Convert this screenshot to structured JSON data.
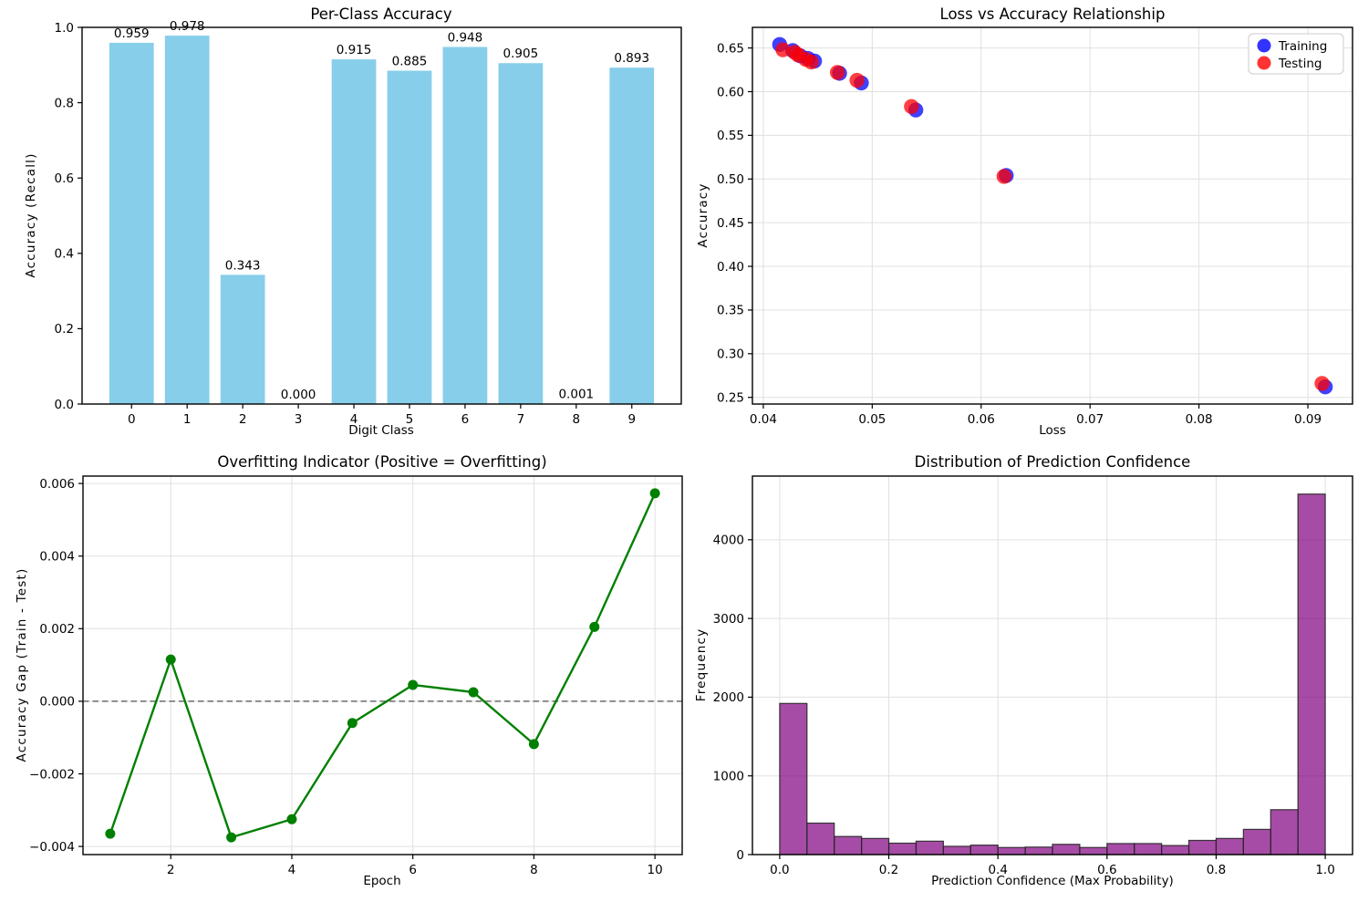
{
  "figure": {
    "background": "#ffffff"
  },
  "chart_data": [
    {
      "type": "bar",
      "title": "Per-Class Accuracy",
      "xlabel": "Digit Class",
      "ylabel": "Accuracy (Recall)",
      "categories": [
        "0",
        "1",
        "2",
        "3",
        "4",
        "5",
        "6",
        "7",
        "8",
        "9"
      ],
      "values": [
        0.959,
        0.978,
        0.343,
        0.0,
        0.915,
        0.885,
        0.948,
        0.905,
        0.001,
        0.893
      ],
      "value_labels": [
        "0.959",
        "0.978",
        "0.343",
        "0.000",
        "0.915",
        "0.885",
        "0.948",
        "0.905",
        "0.001",
        "0.893"
      ],
      "bar_color": "#87CEEB",
      "bar_width": 0.8,
      "xlim": [
        -0.89,
        9.89
      ],
      "ylim": [
        0,
        1.0
      ],
      "yticks": {
        "values": [
          0,
          0.2,
          0.4,
          0.6,
          0.8,
          1.0
        ],
        "labels": [
          "0.0",
          "0.2",
          "0.4",
          "0.6",
          "0.8",
          "1.0"
        ]
      },
      "grid": false
    },
    {
      "type": "scatter",
      "title": "Loss vs Accuracy Relationship",
      "xlabel": "Loss",
      "ylabel": "Accuracy",
      "xlim": [
        0.039,
        0.0941
      ],
      "ylim": [
        0.2424,
        0.6736
      ],
      "xticks": {
        "values": [
          0.04,
          0.05,
          0.06,
          0.07,
          0.08,
          0.09
        ],
        "labels": [
          "0.04",
          "0.05",
          "0.06",
          "0.07",
          "0.08",
          "0.09"
        ]
      },
      "yticks": {
        "values": [
          0.25,
          0.3,
          0.35,
          0.4,
          0.45,
          0.5,
          0.55,
          0.6,
          0.65
        ],
        "labels": [
          "0.25",
          "0.30",
          "0.35",
          "0.40",
          "0.45",
          "0.50",
          "0.55",
          "0.60",
          "0.65"
        ]
      },
      "grid": true,
      "legend": {
        "position": "top-right",
        "entries": [
          {
            "label": "Training",
            "color": "#0000FF"
          },
          {
            "label": "Testing",
            "color": "#FF0000"
          }
        ]
      },
      "series": [
        {
          "name": "Training",
          "color": "#0000FF",
          "alpha": 0.75,
          "points": [
            [
              0.0916,
              0.262
            ],
            [
              0.0623,
              0.504
            ],
            [
              0.054,
              0.579
            ],
            [
              0.049,
              0.61
            ],
            [
              0.047,
              0.621
            ],
            [
              0.0447,
              0.635
            ],
            [
              0.0441,
              0.638
            ],
            [
              0.0434,
              0.641
            ],
            [
              0.0427,
              0.647
            ],
            [
              0.0415,
              0.654
            ]
          ]
        },
        {
          "name": "Testing",
          "color": "#FF0000",
          "alpha": 0.75,
          "points": [
            [
              0.0913,
              0.266
            ],
            [
              0.0621,
              0.503
            ],
            [
              0.0536,
              0.583
            ],
            [
              0.0486,
              0.613
            ],
            [
              0.0468,
              0.622
            ],
            [
              0.0444,
              0.634
            ],
            [
              0.0439,
              0.637
            ],
            [
              0.0432,
              0.642
            ],
            [
              0.0429,
              0.645
            ],
            [
              0.0418,
              0.648
            ]
          ]
        }
      ]
    },
    {
      "type": "line",
      "title": "Overfitting Indicator (Positive = Overfitting)",
      "xlabel": "Epoch",
      "ylabel": "Accuracy Gap (Train - Test)",
      "x": [
        1,
        2,
        3,
        4,
        5,
        6,
        7,
        8,
        9,
        10
      ],
      "y": [
        -0.00365,
        0.00115,
        -0.00375,
        -0.00325,
        -0.0006,
        0.00045,
        0.00025,
        -0.00118,
        0.00205,
        0.00573
      ],
      "line_color": "#008000",
      "marker": "circle",
      "zero_line": {
        "y": 0,
        "style": "dashed",
        "color": "#808080"
      },
      "xlim": [
        0.55,
        10.45
      ],
      "ylim": [
        -0.004224,
        0.006204
      ],
      "xticks": {
        "values": [
          2,
          4,
          6,
          8,
          10
        ],
        "labels": [
          "2",
          "4",
          "6",
          "8",
          "10"
        ]
      },
      "yticks": {
        "values": [
          -0.004,
          -0.002,
          0,
          0.002,
          0.004,
          0.006
        ],
        "labels": [
          "−0.004",
          "−0.002",
          "0.000",
          "0.002",
          "0.004",
          "0.006"
        ]
      },
      "grid": true
    },
    {
      "type": "histogram",
      "title": "Distribution of Prediction Confidence",
      "xlabel": "Prediction Confidence (Max Probability)",
      "ylabel": "Frequency",
      "bin_start": 0,
      "bin_width": 0.05,
      "counts": [
        1920,
        400,
        230,
        205,
        145,
        170,
        105,
        120,
        90,
        95,
        130,
        90,
        140,
        140,
        115,
        180,
        205,
        320,
        570,
        4580
      ],
      "bar_color": "#800080",
      "alpha": 0.7,
      "edge_color": "#262626",
      "xlim": [
        -0.05,
        1.05
      ],
      "ylim": [
        0,
        4809
      ],
      "xticks": {
        "values": [
          0,
          0.2,
          0.4,
          0.6,
          0.8,
          1.0
        ],
        "labels": [
          "0.0",
          "0.2",
          "0.4",
          "0.6",
          "0.8",
          "1.0"
        ]
      },
      "yticks": {
        "values": [
          0,
          1000,
          2000,
          3000,
          4000
        ],
        "labels": [
          "0",
          "1000",
          "2000",
          "3000",
          "4000"
        ]
      },
      "grid": true
    }
  ]
}
